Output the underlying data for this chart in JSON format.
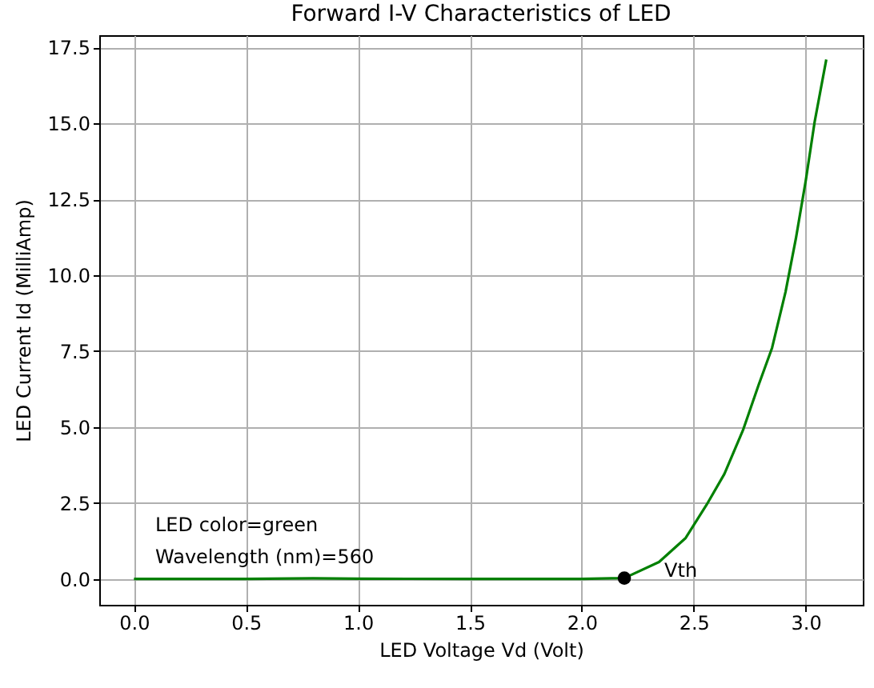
{
  "chart_data": {
    "type": "line",
    "title": "Forward I-V Characteristics of LED",
    "xlabel": "LED Voltage Vd (Volt)",
    "ylabel": "LED Current Id (MilliAmp)",
    "xlim": [
      -0.155,
      3.255
    ],
    "ylim": [
      -0.85,
      17.9
    ],
    "xticks": [
      {
        "value": 0,
        "label": "0.0"
      },
      0.5,
      {
        "value": 1,
        "label": "1.0"
      },
      1.5,
      {
        "value": 2,
        "label": "2.0"
      },
      2.5,
      {
        "value": 3,
        "label": "3.0"
      }
    ],
    "yticks": [
      {
        "value": 0,
        "label": "0.0"
      },
      2.5,
      {
        "value": 5,
        "label": "5.0"
      },
      7.5,
      {
        "value": 10,
        "label": "10.0"
      },
      12.5,
      {
        "value": 15,
        "label": "15.0"
      },
      17.5
    ],
    "grid": true,
    "series": [
      {
        "color": "#008000",
        "marker": "none",
        "x": [
          0,
          0.5,
          0.8,
          1.0,
          1.5,
          2.0,
          2.19,
          2.345,
          2.464,
          2.558,
          2.637,
          2.72,
          2.79,
          2.85,
          2.91,
          2.956,
          3.0,
          3.04,
          3.092
        ],
        "values": [
          0,
          0,
          0.02,
          0.01,
          0,
          0,
          0.03,
          0.56,
          1.35,
          2.45,
          3.46,
          4.9,
          6.39,
          7.61,
          9.45,
          11.2,
          13.1,
          15.05,
          17.1
        ]
      },
      {
        "type": "scatter",
        "color": "#000000",
        "marker": "circle",
        "x": [
          2.19
        ],
        "values": [
          0.03
        ]
      }
    ],
    "annotations": [
      {
        "text": "Vth",
        "x": 2.19,
        "y": 0.03
      },
      "LED color=green",
      "Wavelength (nm)=560"
    ]
  }
}
